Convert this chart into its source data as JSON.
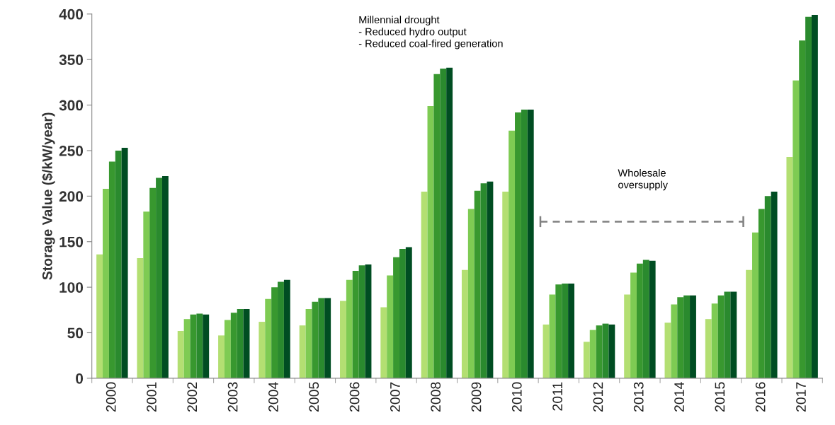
{
  "chart_data": {
    "type": "bar",
    "ylabel": "Storage Value ($/kW/year)",
    "categories": [
      "2000",
      "2001",
      "2002",
      "2003",
      "2004",
      "2005",
      "2006",
      "2007",
      "2008",
      "2009",
      "2010",
      "2011",
      "2012",
      "2013",
      "2014",
      "2015",
      "2016",
      "2017"
    ],
    "series": [
      {
        "color": "#b3df72",
        "values": [
          136,
          132,
          52,
          47,
          62,
          58,
          85,
          78,
          205,
          119,
          205,
          59,
          40,
          92,
          61,
          65,
          119,
          243
        ]
      },
      {
        "color": "#7ecb53",
        "values": [
          208,
          183,
          65,
          64,
          87,
          76,
          108,
          113,
          299,
          186,
          272,
          92,
          53,
          116,
          81,
          82,
          160,
          327
        ]
      },
      {
        "color": "#38982f",
        "values": [
          238,
          209,
          70,
          72,
          100,
          84,
          118,
          133,
          334,
          206,
          292,
          103,
          58,
          126,
          89,
          91,
          186,
          371
        ]
      },
      {
        "color": "#2a8a2e",
        "values": [
          250,
          220,
          71,
          76,
          106,
          88,
          124,
          142,
          340,
          214,
          295,
          104,
          60,
          130,
          91,
          95,
          200,
          397
        ]
      },
      {
        "color": "#004d22",
        "values": [
          253,
          222,
          70,
          76,
          108,
          88,
          125,
          144,
          341,
          216,
          295,
          104,
          59,
          129,
          91,
          95,
          205,
          399
        ]
      }
    ],
    "ylim": [
      0,
      400
    ],
    "yticks": [
      0,
      50,
      100,
      150,
      200,
      250,
      300,
      350,
      400
    ],
    "grid": false,
    "annotations": [
      "Millennial drought\n- Reduced hydro output\n- Reduced coal-fired generation",
      "Wholesale\noversupply"
    ]
  }
}
